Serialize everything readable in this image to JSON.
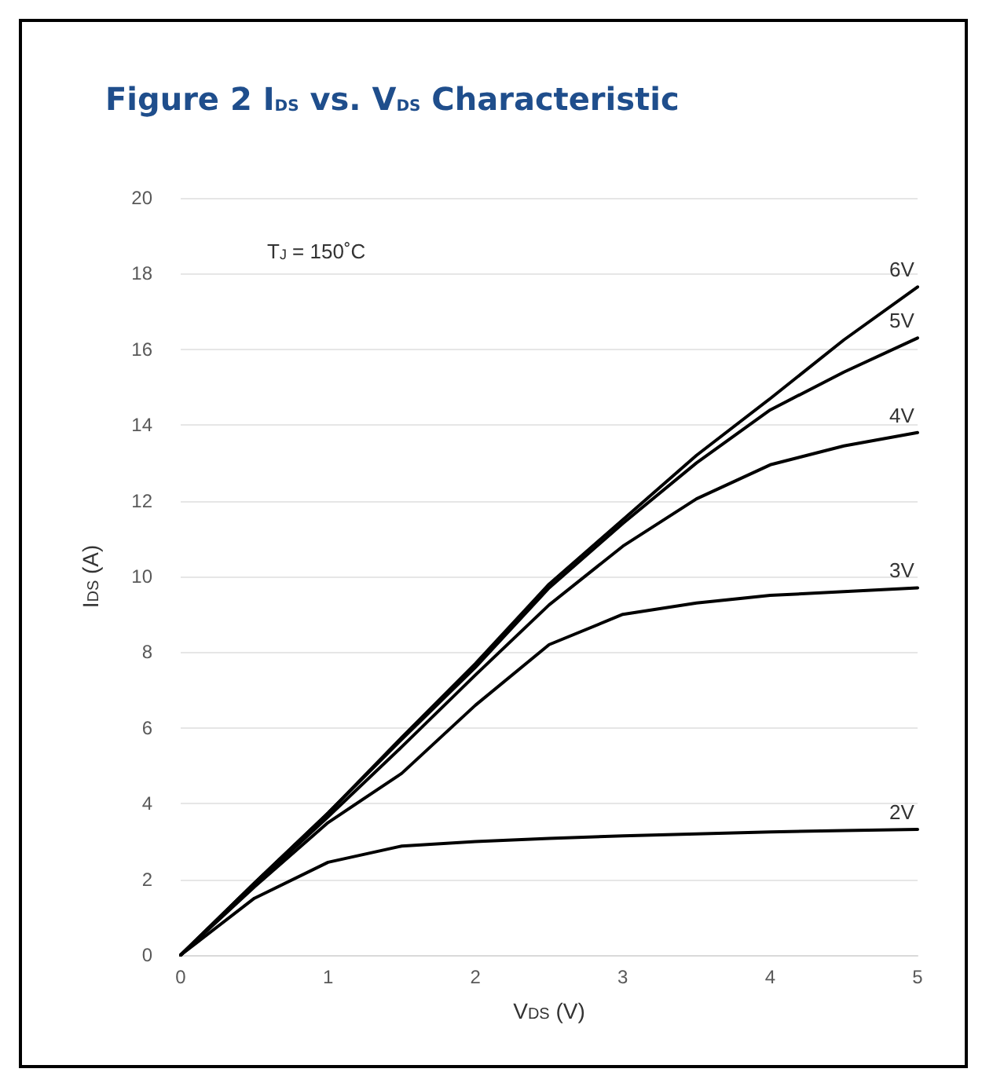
{
  "chart_data": {
    "type": "line",
    "title": "Figure 2 I$_{DS}$ vs. V$_{DS}$ Characteristic",
    "xlabel": "V$_{DS}$ (V)",
    "ylabel": "I$_{DS}$ (A)",
    "annotations": [
      "T$_{J}$ = 150˚C"
    ],
    "x": [
      0,
      0.5,
      1,
      1.5,
      2,
      2.5,
      3,
      3.5,
      4,
      4.5,
      5
    ],
    "series": [
      {
        "name": "2V",
        "color": "#000000",
        "values": [
          0,
          1.5,
          2.45,
          2.88,
          3.0,
          3.08,
          3.15,
          3.2,
          3.25,
          3.29,
          3.32
        ]
      },
      {
        "name": "3V",
        "color": "#000000",
        "values": [
          0,
          1.8,
          3.5,
          4.8,
          6.6,
          8.2,
          9.0,
          9.3,
          9.5,
          9.6,
          9.7
        ]
      },
      {
        "name": "4V",
        "color": "#000000",
        "values": [
          0,
          1.85,
          3.65,
          5.5,
          7.4,
          9.25,
          10.8,
          12.05,
          12.95,
          13.45,
          13.8
        ]
      },
      {
        "name": "5V",
        "color": "#000000",
        "values": [
          0,
          1.9,
          3.75,
          5.7,
          7.6,
          9.7,
          11.4,
          13.0,
          14.4,
          15.4,
          16.3
        ]
      },
      {
        "name": "6V",
        "color": "#000000",
        "values": [
          0,
          1.9,
          3.75,
          5.75,
          7.7,
          9.8,
          11.5,
          13.2,
          14.7,
          16.25,
          17.65
        ]
      }
    ],
    "xlim": [
      0,
      5
    ],
    "xticks": [
      0,
      1,
      2,
      3,
      4,
      5
    ],
    "ylim": [
      0,
      20
    ],
    "yticks": [
      0,
      2,
      4,
      6,
      8,
      10,
      12,
      14,
      16,
      18,
      20
    ],
    "grid": "y",
    "legend": false,
    "marker": "none",
    "line_style": "solid"
  }
}
